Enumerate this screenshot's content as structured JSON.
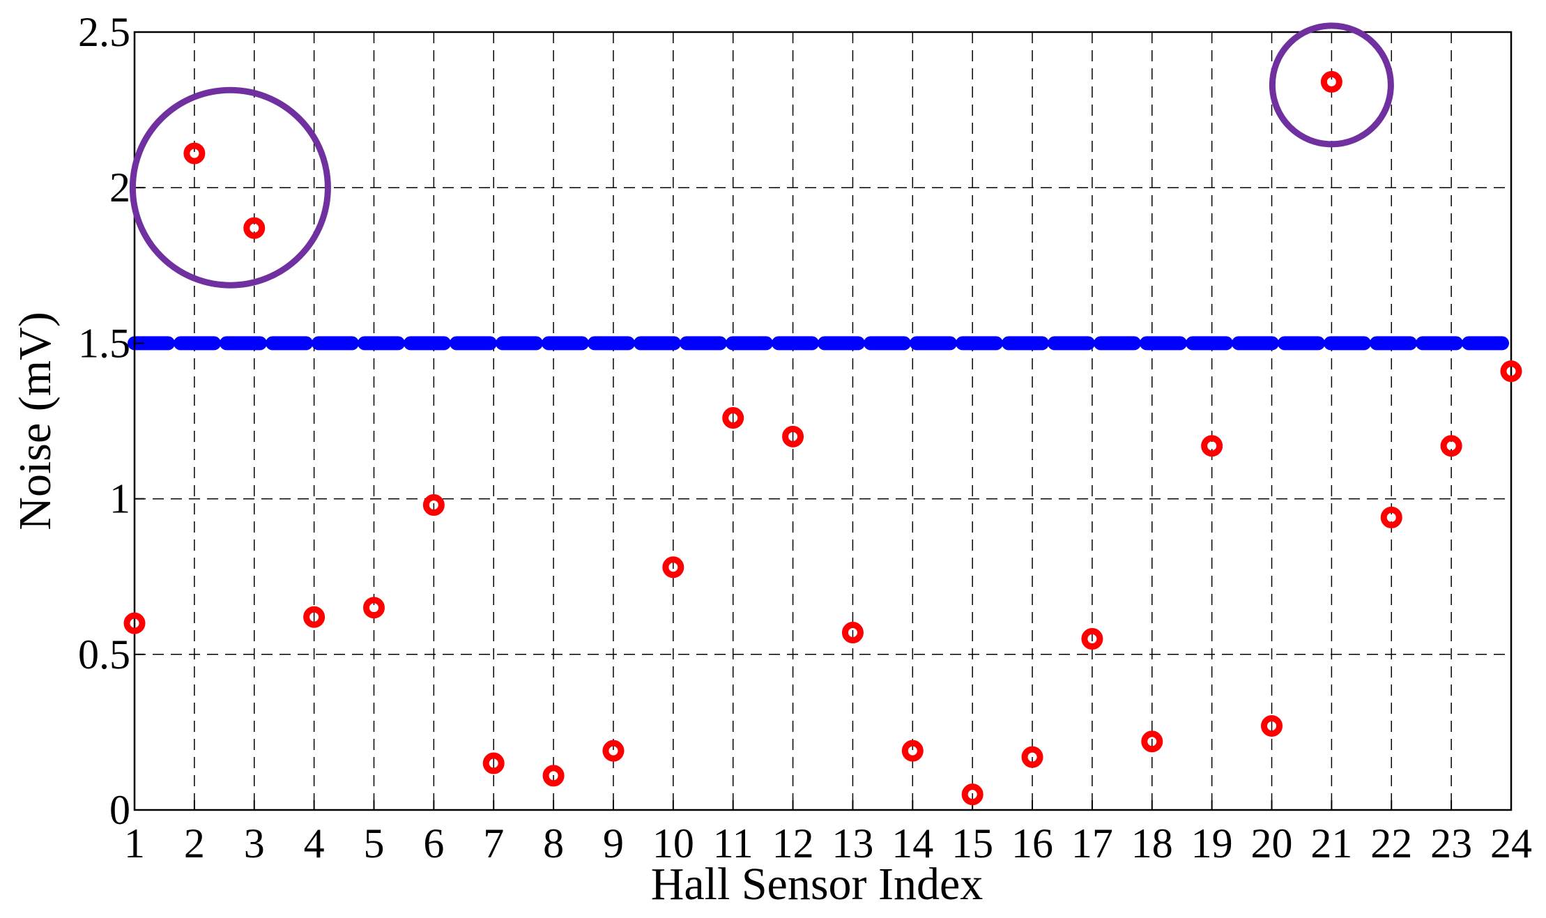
{
  "chart_data": {
    "type": "scatter",
    "title": "",
    "xlabel": "Hall Sensor Index",
    "ylabel": "Noise (mV)",
    "xlim": [
      1,
      24
    ],
    "ylim": [
      0,
      2.5
    ],
    "x_ticks": [
      1,
      2,
      3,
      4,
      5,
      6,
      7,
      8,
      9,
      10,
      11,
      12,
      13,
      14,
      15,
      16,
      17,
      18,
      19,
      20,
      21,
      22,
      23,
      24
    ],
    "y_ticks": [
      0,
      0.5,
      1,
      1.5,
      2,
      2.5
    ],
    "y_tick_labels": [
      "0",
      "0.5",
      "1",
      "1.5",
      "2",
      "2.5"
    ],
    "grid": true,
    "series": [
      {
        "marker_color": "#ff0000",
        "x": [
          1,
          2,
          3,
          4,
          5,
          6,
          7,
          8,
          9,
          10,
          11,
          12,
          13,
          14,
          15,
          16,
          17,
          18,
          19,
          20,
          21,
          22,
          23,
          24
        ],
        "y": [
          0.6,
          2.11,
          1.87,
          0.62,
          0.65,
          0.98,
          0.15,
          0.11,
          0.19,
          0.78,
          1.26,
          1.2,
          0.57,
          0.19,
          0.05,
          0.17,
          0.55,
          0.22,
          1.17,
          0.27,
          2.34,
          0.94,
          1.17,
          1.41
        ]
      }
    ],
    "threshold": {
      "y": 1.5,
      "color": "#0000ff",
      "style": "dashed"
    },
    "highlight_circles": [
      {
        "center_x": 2.6,
        "center_y": 2.0,
        "color": "#7030a0"
      },
      {
        "center_x": 21.0,
        "center_y": 2.33,
        "color": "#7030a0"
      }
    ]
  }
}
